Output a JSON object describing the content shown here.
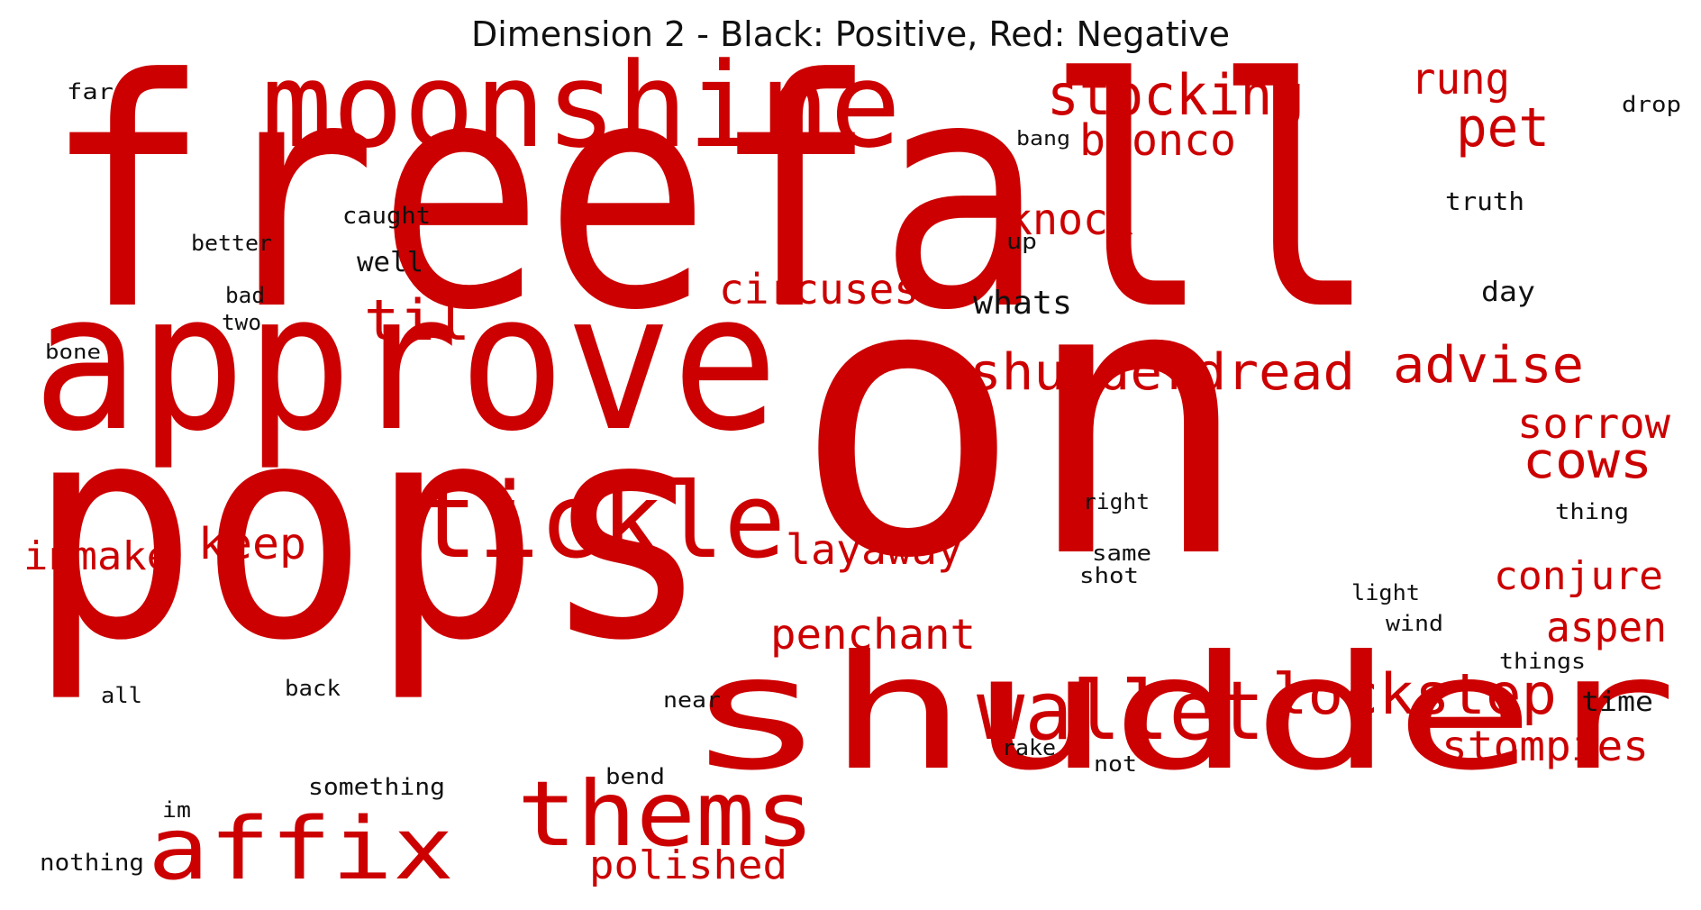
{
  "chart_data": {
    "type": "wordcloud",
    "title": "Dimension 2 - Black: Positive, Red: Negative",
    "colors": {
      "positive": "#111111",
      "negative": "#cc0000"
    },
    "words": [
      {
        "text": "freefall",
        "polarity": "negative"
      },
      {
        "text": "on",
        "polarity": "negative"
      },
      {
        "text": "pops",
        "polarity": "negative"
      },
      {
        "text": "approve",
        "polarity": "negative"
      },
      {
        "text": "shudder",
        "polarity": "negative"
      },
      {
        "text": "moonshine",
        "polarity": "negative"
      },
      {
        "text": "tickle",
        "polarity": "negative"
      },
      {
        "text": "thems",
        "polarity": "negative"
      },
      {
        "text": "wallet",
        "polarity": "negative"
      },
      {
        "text": "affix",
        "polarity": "negative"
      },
      {
        "text": "stocking",
        "polarity": "negative"
      },
      {
        "text": "lockstep",
        "polarity": "negative"
      },
      {
        "text": "shudderdread",
        "polarity": "negative"
      },
      {
        "text": "pet",
        "polarity": "negative"
      },
      {
        "text": "advise",
        "polarity": "negative"
      },
      {
        "text": "til",
        "polarity": "negative"
      },
      {
        "text": "bronco",
        "polarity": "negative"
      },
      {
        "text": "rung",
        "polarity": "negative"
      },
      {
        "text": "cows",
        "polarity": "negative"
      },
      {
        "text": "sorrow",
        "polarity": "negative"
      },
      {
        "text": "circuses",
        "polarity": "negative"
      },
      {
        "text": "knock",
        "polarity": "negative"
      },
      {
        "text": "keep",
        "polarity": "negative"
      },
      {
        "text": "inmake",
        "polarity": "negative"
      },
      {
        "text": "layaway",
        "polarity": "negative"
      },
      {
        "text": "penchant",
        "polarity": "negative"
      },
      {
        "text": "conjure",
        "polarity": "negative"
      },
      {
        "text": "aspen",
        "polarity": "negative"
      },
      {
        "text": "stompies",
        "polarity": "negative"
      },
      {
        "text": "polished",
        "polarity": "negative"
      },
      {
        "text": "whats",
        "polarity": "positive"
      },
      {
        "text": "well",
        "polarity": "positive"
      },
      {
        "text": "day",
        "polarity": "positive"
      },
      {
        "text": "time",
        "polarity": "positive"
      },
      {
        "text": "truth",
        "polarity": "positive"
      },
      {
        "text": "caught",
        "polarity": "positive"
      },
      {
        "text": "better",
        "polarity": "positive"
      },
      {
        "text": "far",
        "polarity": "positive"
      },
      {
        "text": "drop",
        "polarity": "positive"
      },
      {
        "text": "bang",
        "polarity": "positive"
      },
      {
        "text": "up",
        "polarity": "positive"
      },
      {
        "text": "bad",
        "polarity": "positive"
      },
      {
        "text": "two",
        "polarity": "positive"
      },
      {
        "text": "bone",
        "polarity": "positive"
      },
      {
        "text": "right",
        "polarity": "positive"
      },
      {
        "text": "thing",
        "polarity": "positive"
      },
      {
        "text": "same",
        "polarity": "positive"
      },
      {
        "text": "shot",
        "polarity": "positive"
      },
      {
        "text": "light",
        "polarity": "positive"
      },
      {
        "text": "wind",
        "polarity": "positive"
      },
      {
        "text": "things",
        "polarity": "positive"
      },
      {
        "text": "all",
        "polarity": "positive"
      },
      {
        "text": "back",
        "polarity": "positive"
      },
      {
        "text": "near",
        "polarity": "positive"
      },
      {
        "text": "rake",
        "polarity": "positive"
      },
      {
        "text": "not",
        "polarity": "positive"
      },
      {
        "text": "bend",
        "polarity": "positive"
      },
      {
        "text": "something",
        "polarity": "positive"
      },
      {
        "text": "im",
        "polarity": "positive"
      },
      {
        "text": "nothing",
        "polarity": "positive"
      }
    ]
  }
}
